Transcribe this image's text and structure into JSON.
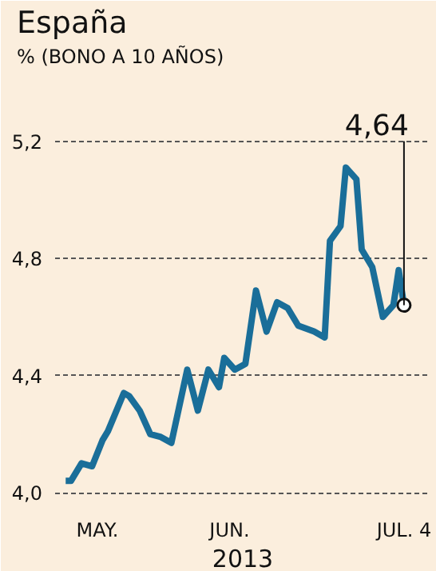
{
  "chart_data": {
    "type": "line",
    "title": "España",
    "subtitle": "% (BONO A 10 AÑOS)",
    "xlabel": "2013",
    "x": [
      "2013-05-01",
      "2013-05-02",
      "2013-05-04",
      "2013-05-06",
      "2013-05-08",
      "2013-05-09",
      "2013-05-12",
      "2013-05-13",
      "2013-05-15",
      "2013-05-17",
      "2013-05-19",
      "2013-05-21",
      "2013-05-24",
      "2013-05-26",
      "2013-05-28",
      "2013-05-30",
      "2013-05-31",
      "2013-06-02",
      "2013-06-04",
      "2013-06-06",
      "2013-06-08",
      "2013-06-10",
      "2013-06-12",
      "2013-06-14",
      "2013-06-17",
      "2013-06-19",
      "2013-06-20",
      "2013-06-22",
      "2013-06-23",
      "2013-06-25",
      "2013-06-26",
      "2013-06-28",
      "2013-06-30",
      "2013-07-02",
      "2013-07-03",
      "2013-07-04"
    ],
    "series": [
      {
        "color": "#1a6e99",
        "values": [
          4.04,
          4.04,
          4.1,
          4.09,
          4.18,
          4.21,
          4.34,
          4.33,
          4.28,
          4.2,
          4.19,
          4.17,
          4.42,
          4.28,
          4.42,
          4.36,
          4.46,
          4.42,
          4.44,
          4.69,
          4.55,
          4.65,
          4.63,
          4.57,
          4.55,
          4.53,
          4.86,
          4.91,
          5.11,
          5.07,
          4.83,
          4.77,
          4.6,
          4.64,
          4.76,
          4.64
        ]
      }
    ],
    "annotations": [
      {
        "text": "4,64",
        "x": "2013-07-04",
        "y": 4.64
      }
    ],
    "xlim": [
      "2013-04-29",
      "2013-07-09"
    ],
    "xticks": [
      {
        "value": "2013-05-07",
        "label": "MAY."
      },
      {
        "value": "2013-06-01",
        "label": "JUN."
      },
      {
        "value": "2013-07-04",
        "label": "JUL. 4"
      }
    ],
    "ylim": [
      3.97,
      5.45
    ],
    "yticks": [
      {
        "value": 4.0,
        "label": "4,0"
      },
      {
        "value": 4.4,
        "label": "4,4"
      },
      {
        "value": 4.8,
        "label": "4,8"
      },
      {
        "value": 5.2,
        "label": "5,2"
      }
    ],
    "grid": "y",
    "line_style": "solid"
  }
}
